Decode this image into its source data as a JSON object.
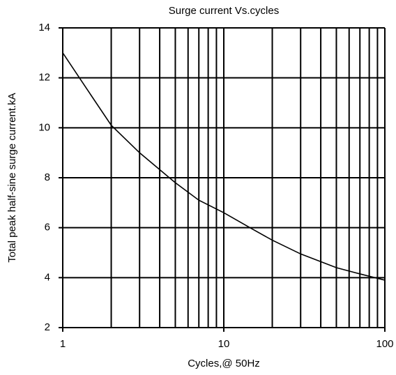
{
  "chart_data": {
    "type": "line",
    "title": "Surge current Vs.cycles",
    "xlabel": "Cycles,@ 50Hz",
    "ylabel": "Total peak half-sine surge current.kA",
    "xscale": "log",
    "xlim": [
      1,
      100
    ],
    "ylim": [
      2,
      14
    ],
    "xticks": [
      1,
      10,
      100
    ],
    "yticks": [
      2,
      4,
      6,
      8,
      10,
      12,
      14
    ],
    "xgrid": [
      2,
      3,
      4,
      5,
      6,
      7,
      8,
      9,
      20,
      30,
      40,
      50,
      60,
      70,
      80,
      90
    ],
    "grid": true,
    "x": [
      1,
      1.5,
      2,
      3,
      5,
      7,
      10,
      15,
      20,
      30,
      50,
      70,
      100
    ],
    "series": [
      {
        "name": "Surge current",
        "color": "#000000",
        "values": [
          13,
          11.3,
          10.1,
          9.0,
          7.8,
          7.1,
          6.6,
          5.95,
          5.5,
          4.95,
          4.4,
          4.15,
          3.9
        ]
      }
    ]
  }
}
